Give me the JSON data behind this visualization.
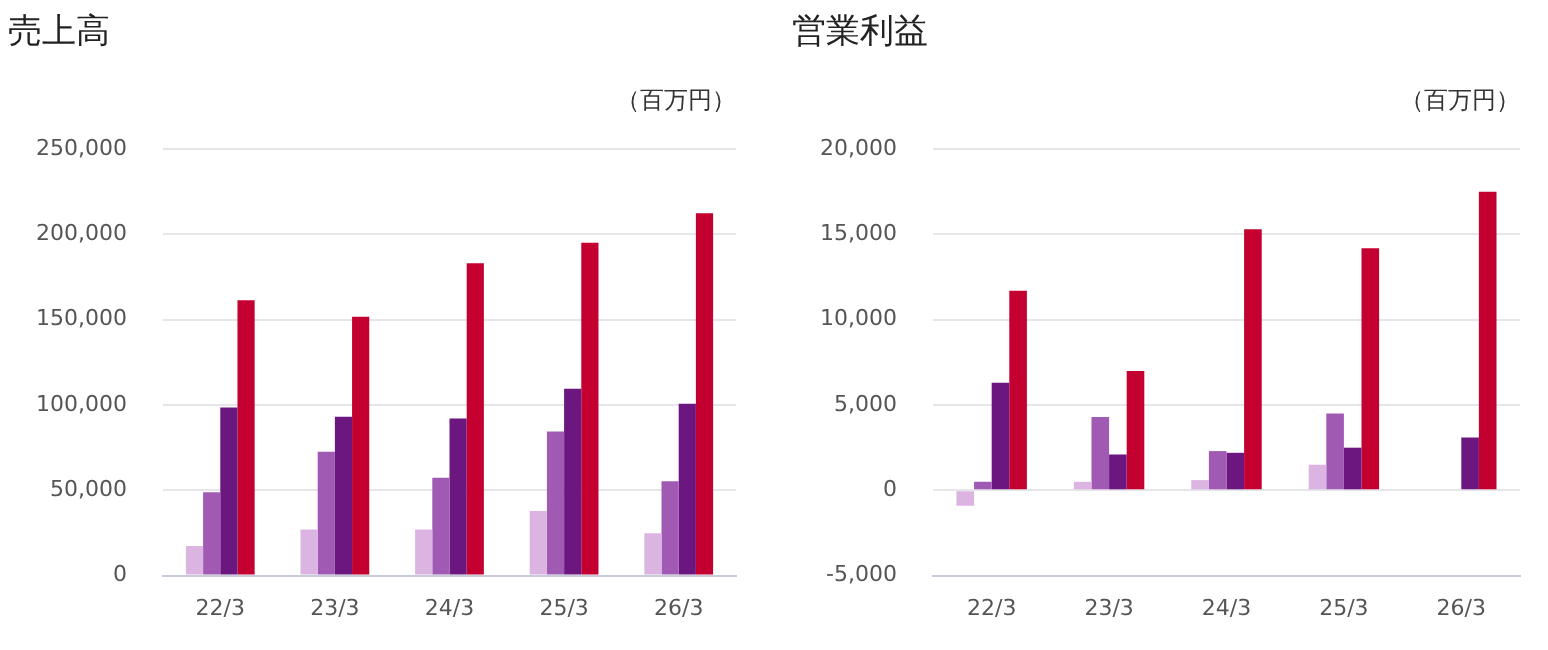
{
  "chart_data": [
    {
      "type": "bar",
      "title": "売上高",
      "ylabel": "（百万円）",
      "categories": [
        "22/3",
        "23/3",
        "24/3",
        "25/3",
        "26/3"
      ],
      "series": [
        {
          "color": "#dcb4e2",
          "values": [
            17300,
            27100,
            27100,
            37900,
            24900
          ]
        },
        {
          "color": "#a05ab4",
          "values": [
            48800,
            72600,
            57400,
            84500,
            55300
          ]
        },
        {
          "color": "#6c1680",
          "values": [
            98600,
            93200,
            92100,
            109500,
            100800
          ]
        },
        {
          "color": "#c40030",
          "values": [
            161500,
            151700,
            183200,
            195100,
            212400
          ]
        }
      ],
      "ylim": [
        0,
        250000
      ],
      "yticks": [
        {
          "value": 0,
          "label": "0"
        },
        {
          "value": 50000,
          "label": "50,000"
        },
        {
          "value": 100000,
          "label": "100,000"
        },
        {
          "value": 150000,
          "label": "150,000"
        },
        {
          "value": 200000,
          "label": "200,000"
        },
        {
          "value": 250000,
          "label": "250,000"
        }
      ],
      "grid": "y",
      "legend": false
    },
    {
      "type": "bar",
      "title": "営業利益",
      "ylabel": "（百万円）",
      "categories": [
        "22/3",
        "23/3",
        "24/3",
        "25/3",
        "26/3"
      ],
      "series": [
        {
          "color": "#dcb4e2",
          "values": [
            -900,
            500,
            600,
            1500,
            null
          ]
        },
        {
          "color": "#a05ab4",
          "values": [
            500,
            4300,
            2300,
            4500,
            null
          ]
        },
        {
          "color": "#6c1680",
          "values": [
            6300,
            2100,
            2200,
            2500,
            3100
          ]
        },
        {
          "color": "#c40030",
          "values": [
            11700,
            7000,
            15300,
            14200,
            17500
          ]
        }
      ],
      "ylim": [
        -5000,
        20000
      ],
      "yticks": [
        {
          "value": -5000,
          "label": "-5,000"
        },
        {
          "value": 0,
          "label": "0"
        },
        {
          "value": 5000,
          "label": "5,000"
        },
        {
          "value": 10000,
          "label": "10,000"
        },
        {
          "value": 15000,
          "label": "15,000"
        },
        {
          "value": 20000,
          "label": "20,000"
        }
      ],
      "grid": "y",
      "legend": false
    }
  ]
}
